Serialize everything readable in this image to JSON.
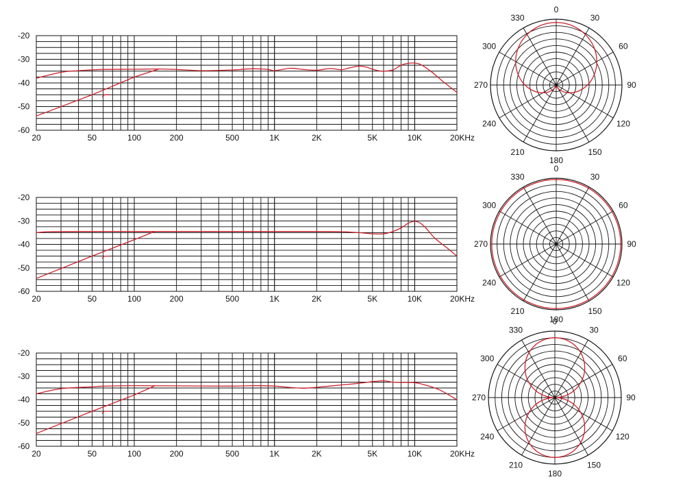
{
  "colors": {
    "grid": "#111111",
    "curve": "#cc1f2a",
    "background": "#ffffff"
  },
  "chart_data": [
    {
      "type": "line",
      "xscale": "log",
      "xlim": [
        20,
        20000
      ],
      "ylim": [
        -60,
        -20
      ],
      "x_ticks": [
        20,
        50,
        100,
        200,
        500,
        1000,
        2000,
        5000,
        10000,
        20000
      ],
      "x_tick_labels": [
        "20",
        "50",
        "100",
        "200",
        "500",
        "1K",
        "2K",
        "5K",
        "10K",
        "20KHz"
      ],
      "y_ticks": [
        -20,
        -30,
        -40,
        -50,
        -60
      ],
      "y_tick_labels": [
        "-20",
        "-30",
        "-40",
        "-50",
        "-60"
      ],
      "grid": true,
      "series": [
        {
          "role": "response",
          "x": [
            20,
            30,
            40,
            60,
            100,
            150,
            200,
            300,
            500,
            700,
            900,
            1000,
            1300,
            1600,
            2000,
            2500,
            3000,
            3500,
            4000,
            4500,
            5000,
            5500,
            6000,
            7000,
            8000,
            9000,
            10000,
            11000,
            13000,
            16000,
            20000
          ],
          "y": [
            -38,
            -35.5,
            -34.8,
            -34.3,
            -34.2,
            -34.1,
            -34.3,
            -34.8,
            -34.5,
            -34,
            -34.3,
            -34.8,
            -33.8,
            -34.3,
            -34.6,
            -33.9,
            -34.4,
            -33.5,
            -32.9,
            -33.3,
            -34.2,
            -34.8,
            -35,
            -34.5,
            -32.5,
            -31.7,
            -31.6,
            -32.2,
            -35,
            -39.5,
            -44
          ]
        },
        {
          "role": "low-cut",
          "x": [
            20,
            50,
            100,
            150
          ],
          "y": [
            -54,
            -45,
            -37.5,
            -34.1
          ]
        },
        {
          "role": "low-cut-marker",
          "x": [
            59,
            61,
            67
          ],
          "y": [
            -46,
            -45,
            -45
          ]
        }
      ]
    },
    {
      "type": "line",
      "xscale": "log",
      "xlim": [
        20,
        20000
      ],
      "ylim": [
        -60,
        -20
      ],
      "x_ticks": [
        20,
        50,
        100,
        200,
        500,
        1000,
        2000,
        5000,
        10000,
        20000
      ],
      "x_tick_labels": [
        "20",
        "50",
        "100",
        "200",
        "500",
        "1K",
        "2K",
        "5K",
        "10K",
        "20KHz"
      ],
      "y_ticks": [
        -20,
        -30,
        -40,
        -50,
        -60
      ],
      "y_tick_labels": [
        "-20",
        "-30",
        "-40",
        "-50",
        "-60"
      ],
      "grid": true,
      "series": [
        {
          "role": "response",
          "x": [
            20,
            25,
            50,
            100,
            200,
            500,
            1000,
            2000,
            3000,
            4000,
            5000,
            6000,
            7000,
            8000,
            9000,
            10000,
            11000,
            12000,
            14000,
            17000,
            20000
          ],
          "y": [
            -35,
            -34.6,
            -34.5,
            -34.5,
            -34.5,
            -34.5,
            -34.5,
            -34.5,
            -34.6,
            -35,
            -35.5,
            -35.5,
            -34.5,
            -33,
            -31,
            -30.2,
            -31,
            -33,
            -37.5,
            -41.5,
            -45
          ]
        },
        {
          "role": "low-cut",
          "x": [
            20,
            50,
            100,
            140
          ],
          "y": [
            -54.5,
            -45,
            -38,
            -34.5
          ]
        },
        {
          "role": "low-cut-marker",
          "x": [
            59,
            61,
            67
          ],
          "y": [
            -46,
            -45,
            -45
          ]
        }
      ]
    },
    {
      "type": "line",
      "xscale": "log",
      "xlim": [
        20,
        20000
      ],
      "ylim": [
        -60,
        -20
      ],
      "x_ticks": [
        20,
        50,
        100,
        200,
        500,
        1000,
        2000,
        5000,
        10000,
        20000
      ],
      "x_tick_labels": [
        "20",
        "50",
        "100",
        "200",
        "500",
        "1K",
        "2K",
        "5K",
        "10K",
        "20KHz"
      ],
      "y_ticks": [
        -20,
        -30,
        -40,
        -50,
        -60
      ],
      "y_tick_labels": [
        "-20",
        "-30",
        "-40",
        "-50",
        "-60"
      ],
      "grid": true,
      "series": [
        {
          "role": "response",
          "x": [
            20,
            30,
            50,
            60,
            100,
            200,
            500,
            700,
            1000,
            1300,
            1600,
            2000,
            3000,
            4000,
            5000,
            6000,
            7000,
            8000,
            10000,
            12000,
            15000,
            20000
          ],
          "y": [
            -37.5,
            -35.3,
            -34.5,
            -34.2,
            -34,
            -34.1,
            -34.2,
            -34,
            -34.2,
            -34.8,
            -35.1,
            -34.7,
            -33.7,
            -33,
            -32.3,
            -31.9,
            -32.5,
            -32.6,
            -32.7,
            -33.8,
            -35.8,
            -40
          ]
        },
        {
          "role": "low-cut",
          "x": [
            20,
            50,
            100,
            140
          ],
          "y": [
            -54.5,
            -45,
            -38,
            -34.1
          ]
        },
        {
          "role": "low-cut-marker",
          "x": [
            59,
            61,
            67
          ],
          "y": [
            -46,
            -45,
            -45
          ]
        }
      ]
    },
    {
      "type": "polar",
      "pattern": "cardioid",
      "angle_labels": [
        "0",
        "30",
        "60",
        "90",
        "120",
        "150",
        "180",
        "210",
        "240",
        "270",
        "300",
        "330"
      ],
      "rings": 10,
      "series": [
        {
          "role": "pickup-pattern",
          "equation": "r = 0.5 + 0.5*cos(theta)",
          "scale": 0.95
        }
      ]
    },
    {
      "type": "polar",
      "pattern": "omnidirectional",
      "angle_labels": [
        "0",
        "30",
        "60",
        "90",
        "120",
        "150",
        "180",
        "210",
        "240",
        "270",
        "300",
        "330"
      ],
      "rings": 10,
      "series": [
        {
          "role": "pickup-pattern",
          "equation": "r = 1",
          "scale": 0.98
        }
      ]
    },
    {
      "type": "polar",
      "pattern": "figure-8",
      "angle_labels": [
        "0",
        "30",
        "60",
        "90",
        "120",
        "150",
        "180",
        "210",
        "240",
        "270",
        "300",
        "330"
      ],
      "rings": 10,
      "series": [
        {
          "role": "pickup-pattern",
          "equation": "r = |cos(theta)|",
          "scale": 0.9
        }
      ]
    }
  ]
}
